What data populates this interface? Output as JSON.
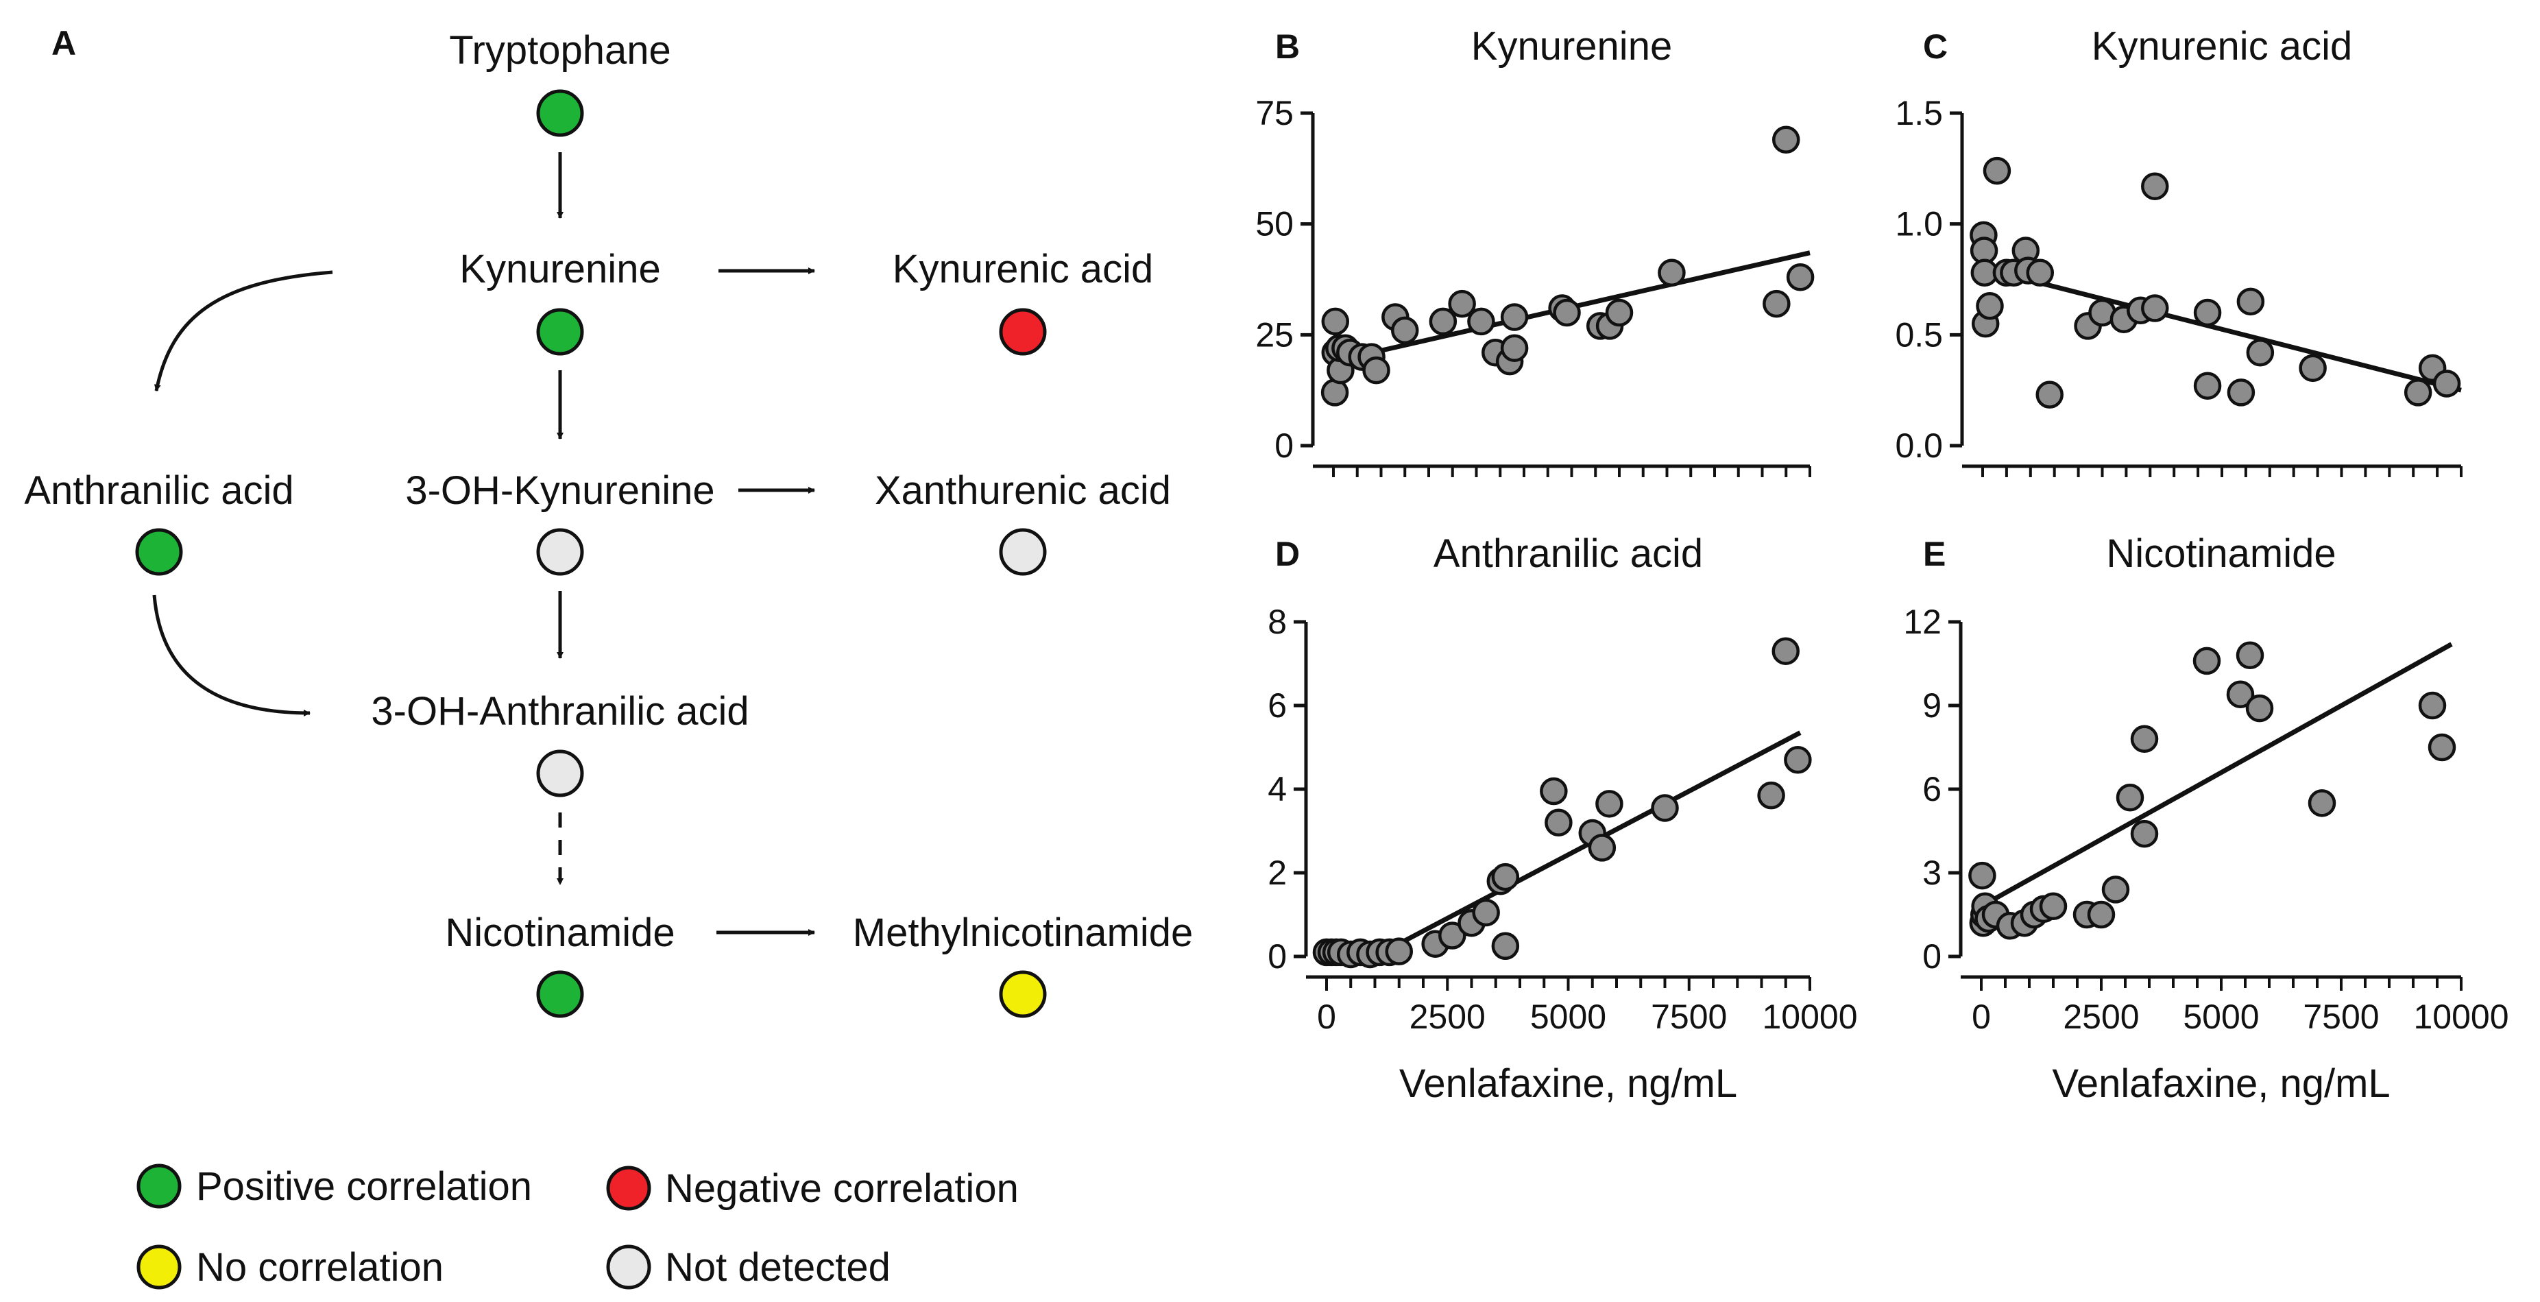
{
  "colors": {
    "positive": "#1db337",
    "negative": "#ee2228",
    "none": "#f2ee06",
    "not_detected": "#e8e8e8",
    "point_fill": "#8c8c8c",
    "stroke": "#111111"
  },
  "pathway": {
    "panel_letter": "A",
    "nodes": [
      {
        "id": "tryptophane",
        "label": "Tryptophane",
        "status": "positive"
      },
      {
        "id": "kynurenine",
        "label": "Kynurenine",
        "status": "positive"
      },
      {
        "id": "kynurenic-acid",
        "label": "Kynurenic acid",
        "status": "negative"
      },
      {
        "id": "anthranilic-acid",
        "label": "Anthranilic acid",
        "status": "positive"
      },
      {
        "id": "3-oh-kynurenine",
        "label": "3-OH-Kynurenine",
        "status": "not_detected"
      },
      {
        "id": "xanthurenic-acid",
        "label": "Xanthurenic acid",
        "status": "not_detected"
      },
      {
        "id": "3-oh-anthranilic-acid",
        "label": "3-OH-Anthranilic acid",
        "status": "not_detected"
      },
      {
        "id": "nicotinamide",
        "label": "Nicotinamide",
        "status": "positive"
      },
      {
        "id": "methylnicotinamide",
        "label": "Methylnicotinamide",
        "status": "none"
      }
    ],
    "legend": [
      {
        "label": "Positive correlation",
        "status": "positive"
      },
      {
        "label": "Negative correlation",
        "status": "negative"
      },
      {
        "label": "No correlation",
        "status": "none"
      },
      {
        "label": "Not detected",
        "status": "not_detected"
      }
    ]
  },
  "chart_data": [
    {
      "panel": "B",
      "type": "scatter",
      "title": "Kynurenine",
      "xlabel": "",
      "ylabel": "",
      "xlim": [
        0,
        10000
      ],
      "ylim": [
        0,
        75
      ],
      "x_ticks": [],
      "y_ticks": [
        0,
        25,
        50,
        75
      ],
      "y_tick_labels": [
        "0",
        "25",
        "50",
        "75"
      ],
      "fit_line": {
        "x": [
          0,
          10000
        ],
        "y": [
          19,
          43.5
        ]
      },
      "points": [
        {
          "x": 40,
          "y": 28
        },
        {
          "x": 40,
          "y": 21
        },
        {
          "x": 30,
          "y": 12
        },
        {
          "x": 150,
          "y": 17
        },
        {
          "x": 120,
          "y": 22
        },
        {
          "x": 250,
          "y": 22
        },
        {
          "x": 350,
          "y": 21
        },
        {
          "x": 600,
          "y": 20
        },
        {
          "x": 800,
          "y": 20
        },
        {
          "x": 900,
          "y": 17
        },
        {
          "x": 1300,
          "y": 29
        },
        {
          "x": 1500,
          "y": 26
        },
        {
          "x": 2300,
          "y": 28
        },
        {
          "x": 2700,
          "y": 32
        },
        {
          "x": 3100,
          "y": 28
        },
        {
          "x": 3400,
          "y": 21
        },
        {
          "x": 3700,
          "y": 19
        },
        {
          "x": 3800,
          "y": 22
        },
        {
          "x": 3800,
          "y": 29
        },
        {
          "x": 4800,
          "y": 31
        },
        {
          "x": 4900,
          "y": 30
        },
        {
          "x": 5600,
          "y": 27
        },
        {
          "x": 5800,
          "y": 27
        },
        {
          "x": 6000,
          "y": 30
        },
        {
          "x": 7100,
          "y": 39
        },
        {
          "x": 9300,
          "y": 32
        },
        {
          "x": 9500,
          "y": 69
        },
        {
          "x": 9800,
          "y": 38
        }
      ]
    },
    {
      "panel": "C",
      "type": "scatter",
      "title": "Kynurenic acid",
      "xlabel": "",
      "ylabel": "",
      "xlim": [
        0,
        10000
      ],
      "ylim": [
        0,
        1.5
      ],
      "x_ticks": [],
      "y_ticks": [
        0,
        0.5,
        1.0,
        1.5
      ],
      "y_tick_labels": [
        "0.0",
        "0.5",
        "1.0",
        "1.5"
      ],
      "fit_line": {
        "x": [
          0,
          10000
        ],
        "y": [
          0.8,
          0.25
        ]
      },
      "points": [
        {
          "x": 20,
          "y": 0.95
        },
        {
          "x": 30,
          "y": 0.88
        },
        {
          "x": 40,
          "y": 0.78
        },
        {
          "x": 60,
          "y": 0.55
        },
        {
          "x": 150,
          "y": 0.63
        },
        {
          "x": 300,
          "y": 1.24
        },
        {
          "x": 500,
          "y": 0.78
        },
        {
          "x": 650,
          "y": 0.78
        },
        {
          "x": 900,
          "y": 0.88
        },
        {
          "x": 950,
          "y": 0.79
        },
        {
          "x": 1200,
          "y": 0.78
        },
        {
          "x": 1400,
          "y": 0.23
        },
        {
          "x": 2200,
          "y": 0.54
        },
        {
          "x": 2500,
          "y": 0.6
        },
        {
          "x": 2950,
          "y": 0.57
        },
        {
          "x": 3300,
          "y": 0.61
        },
        {
          "x": 3600,
          "y": 0.62
        },
        {
          "x": 3600,
          "y": 1.17
        },
        {
          "x": 4700,
          "y": 0.6
        },
        {
          "x": 4700,
          "y": 0.27
        },
        {
          "x": 5400,
          "y": 0.24
        },
        {
          "x": 5600,
          "y": 0.65
        },
        {
          "x": 5800,
          "y": 0.42
        },
        {
          "x": 6900,
          "y": 0.35
        },
        {
          "x": 9100,
          "y": 0.24
        },
        {
          "x": 9400,
          "y": 0.35
        },
        {
          "x": 9700,
          "y": 0.28
        }
      ]
    },
    {
      "panel": "D",
      "type": "scatter",
      "title": "Anthranilic acid",
      "xlabel": "Venlafaxine, ng/mL",
      "ylabel": "",
      "xlim": [
        0,
        10000
      ],
      "ylim": [
        0,
        8
      ],
      "x_ticks": [
        0,
        2500,
        5000,
        7500,
        10000
      ],
      "x_tick_labels": [
        "0",
        "2500",
        "5000",
        "7500",
        "10000"
      ],
      "y_ticks": [
        0,
        2,
        4,
        6,
        8
      ],
      "y_tick_labels": [
        "0",
        "2",
        "4",
        "6",
        "8"
      ],
      "fit_line": {
        "x": [
          1000,
          9800
        ],
        "y": [
          0,
          5.35
        ]
      },
      "points": [
        {
          "x": 0,
          "y": 0.1
        },
        {
          "x": 100,
          "y": 0.1
        },
        {
          "x": 200,
          "y": 0.1
        },
        {
          "x": 300,
          "y": 0.1
        },
        {
          "x": 500,
          "y": 0.05
        },
        {
          "x": 700,
          "y": 0.1
        },
        {
          "x": 900,
          "y": 0.05
        },
        {
          "x": 1100,
          "y": 0.1
        },
        {
          "x": 1300,
          "y": 0.1
        },
        {
          "x": 1500,
          "y": 0.12
        },
        {
          "x": 2250,
          "y": 0.3
        },
        {
          "x": 2600,
          "y": 0.5
        },
        {
          "x": 3000,
          "y": 0.8
        },
        {
          "x": 3300,
          "y": 1.05
        },
        {
          "x": 3600,
          "y": 1.8
        },
        {
          "x": 3700,
          "y": 1.9
        },
        {
          "x": 3700,
          "y": 0.25
        },
        {
          "x": 4700,
          "y": 3.95
        },
        {
          "x": 4800,
          "y": 3.2
        },
        {
          "x": 5500,
          "y": 2.95
        },
        {
          "x": 5700,
          "y": 2.6
        },
        {
          "x": 5850,
          "y": 3.65
        },
        {
          "x": 7000,
          "y": 3.55
        },
        {
          "x": 9200,
          "y": 3.85
        },
        {
          "x": 9500,
          "y": 7.3
        },
        {
          "x": 9750,
          "y": 4.7
        }
      ]
    },
    {
      "panel": "E",
      "type": "scatter",
      "title": "Nicotinamide",
      "xlabel": "Venlafaxine, ng/mL",
      "ylabel": "",
      "xlim": [
        0,
        10000
      ],
      "ylim": [
        0,
        12
      ],
      "x_ticks": [
        0,
        2500,
        5000,
        7500,
        10000
      ],
      "x_tick_labels": [
        "0",
        "2500",
        "5000",
        "7500",
        "10000"
      ],
      "y_ticks": [
        0,
        3,
        6,
        9,
        12
      ],
      "y_tick_labels": [
        "0",
        "3",
        "6",
        "9",
        "12"
      ],
      "fit_line": {
        "x": [
          0,
          9800
        ],
        "y": [
          1.8,
          11.2
        ]
      },
      "points": [
        {
          "x": 20,
          "y": 2.9
        },
        {
          "x": 40,
          "y": 1.2
        },
        {
          "x": 60,
          "y": 1.5
        },
        {
          "x": 80,
          "y": 1.8
        },
        {
          "x": 150,
          "y": 1.35
        },
        {
          "x": 300,
          "y": 1.5
        },
        {
          "x": 600,
          "y": 1.1
        },
        {
          "x": 900,
          "y": 1.2
        },
        {
          "x": 1100,
          "y": 1.5
        },
        {
          "x": 1300,
          "y": 1.7
        },
        {
          "x": 1500,
          "y": 1.8
        },
        {
          "x": 2200,
          "y": 1.5
        },
        {
          "x": 2500,
          "y": 1.5
        },
        {
          "x": 2800,
          "y": 2.4
        },
        {
          "x": 3100,
          "y": 5.7
        },
        {
          "x": 3400,
          "y": 4.4
        },
        {
          "x": 3400,
          "y": 7.8
        },
        {
          "x": 4700,
          "y": 10.6
        },
        {
          "x": 5400,
          "y": 9.4
        },
        {
          "x": 5600,
          "y": 10.8
        },
        {
          "x": 5800,
          "y": 8.9
        },
        {
          "x": 7100,
          "y": 5.5
        },
        {
          "x": 9400,
          "y": 9.0
        },
        {
          "x": 9600,
          "y": 7.5
        }
      ]
    }
  ]
}
